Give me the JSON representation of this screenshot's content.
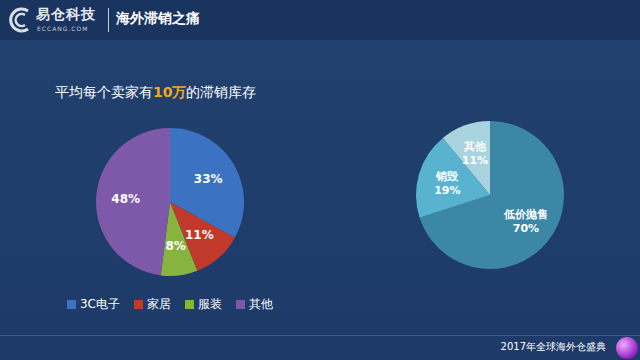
{
  "header": {
    "logo": "易仓科技",
    "logo_sub": "ECCANG.COM",
    "title": "海外滞销之痛"
  },
  "chart_data": [
    {
      "type": "pie",
      "title": "平均每个卖家有10万的滞销库存",
      "categories": [
        "3C电子",
        "家居",
        "服装",
        "其他"
      ],
      "values": [
        33,
        11,
        8,
        48
      ],
      "value_labels": [
        "33%",
        "11%",
        "8%",
        "48%"
      ],
      "colors": [
        "#3b73c2",
        "#c0392b",
        "#86b43f",
        "#7e58a9"
      ],
      "data_labels": true,
      "legend": "bottom"
    },
    {
      "type": "pie",
      "categories": [
        "低价抛售",
        "销毁",
        "其他"
      ],
      "values": [
        70,
        19,
        11
      ],
      "value_labels": [
        "70%",
        "19%",
        "11%"
      ],
      "colors": [
        "#3d87a6",
        "#58b3d1",
        "#a9d3df"
      ],
      "data_labels": true
    }
  ],
  "footer": "2017年全球海外仓盛典"
}
